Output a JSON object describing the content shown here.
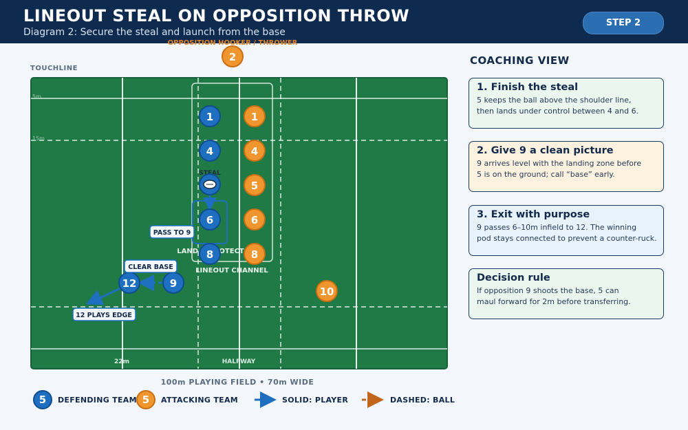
{
  "header": {
    "title": "LINEOUT STEAL ON OPPOSITION THROW",
    "subtitle": "Diagram 2: Secure the steal and launch from the base",
    "step_label": "STEP 2"
  },
  "field": {
    "touchline_label": "TOUCHLINE",
    "line_5m_label": "5m",
    "line_15m_label": "15m",
    "line_22m_label": "22m",
    "halfway_label": "HALFWAY",
    "thrower_label": "OPPOSITION HOOKER / THROWER",
    "thrower_number": "2",
    "channel_label": "LINEOUT CHANNEL",
    "steal_label": "STEAL",
    "land_label": "LAND + PROTECT",
    "pass_label": "PASS TO 9",
    "clear_label": "CLEAR BASE",
    "edge_label": "12 PLAYS EDGE",
    "caption": "100m PLAYING FIELD  •  70m WIDE"
  },
  "players": {
    "defending": [
      "1",
      "4",
      "6",
      "8",
      "9",
      "12"
    ],
    "attacking": [
      "1",
      "4",
      "5",
      "6",
      "8",
      "10"
    ]
  },
  "panel": {
    "title": "COACHING VIEW",
    "cards": [
      {
        "title": "1. Finish the steal",
        "lines": [
          "5 keeps the ball above the shoulder line,",
          "then lands under control between 4 and 6."
        ],
        "bg": "#eaf6ee"
      },
      {
        "title": "2. Give 9 a clean picture",
        "lines": [
          "9 arrives level with the landing zone before",
          "5 is on the ground; call “base” early."
        ],
        "bg": "#fdf1df"
      },
      {
        "title": "3. Exit with purpose",
        "lines": [
          "9 passes 6–10m infield to 12. The winning",
          "pod stays connected to prevent a counter-ruck."
        ],
        "bg": "#e8f2fb"
      },
      {
        "title": "Decision rule",
        "lines": [
          "If opposition 9 shoots the base, 5 can",
          "maul forward for 2m before transferring."
        ],
        "bg": "#eaf6ee"
      }
    ]
  },
  "legend": {
    "defending_number": "5",
    "defending_label": "DEFENDING TEAM",
    "attacking_number": "5",
    "attacking_label": "ATTACKING TEAM",
    "solid_label": "SOLID: PLAYER",
    "dashed_label": "DASHED: BALL"
  },
  "colors": {
    "header_bg": "#0f2a4f",
    "field_green": "#1f7a46",
    "defending_blue": "#1f6fc0",
    "attacking_orange": "#f0962e",
    "ball_arrow": "#c0651a"
  }
}
